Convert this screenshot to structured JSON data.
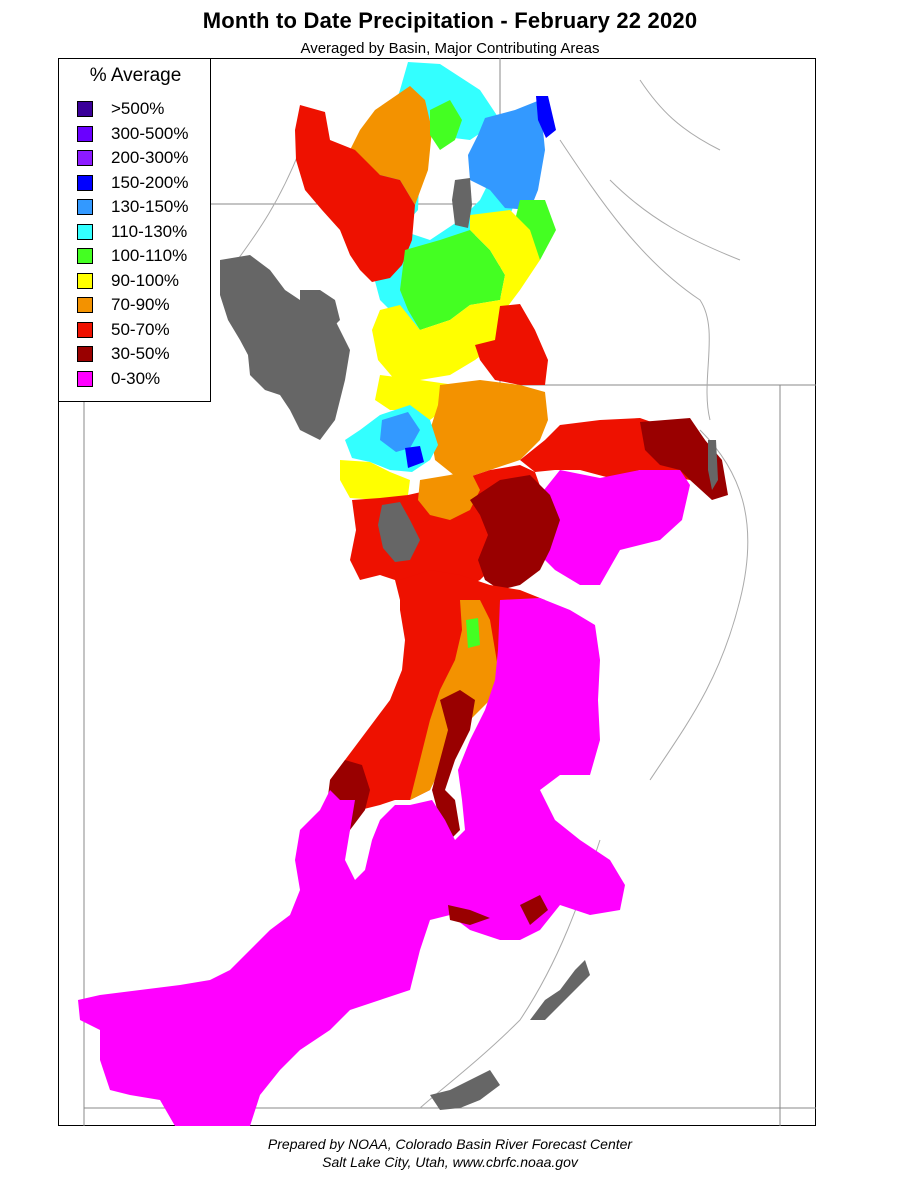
{
  "title": "Month to Date Precipitation - February 22 2020",
  "subtitle": "Averaged by Basin, Major Contributing Areas",
  "legend": {
    "title": "% Average",
    "items": [
      {
        "label": ">500%",
        "color": "#3a0099"
      },
      {
        "label": "300-500%",
        "color": "#6a00ff"
      },
      {
        "label": "200-300%",
        "color": "#8c1aff"
      },
      {
        "label": "150-200%",
        "color": "#0000ff"
      },
      {
        "label": "130-150%",
        "color": "#3399ff"
      },
      {
        "label": "110-130%",
        "color": "#33ffff"
      },
      {
        "label": "100-110%",
        "color": "#44ff22"
      },
      {
        "label": "90-100%",
        "color": "#ffff00"
      },
      {
        "label": "70-90%",
        "color": "#f39200"
      },
      {
        "label": "50-70%",
        "color": "#ee1100"
      },
      {
        "label": "30-50%",
        "color": "#990000"
      },
      {
        "label": "0-30%",
        "color": "#ff00ff"
      }
    ]
  },
  "lake_color": "#666666",
  "footer": {
    "line1": "Prepared by NOAA, Colorado Basin River Forecast Center",
    "line2": "Salt Lake City, Utah, www.cbrfc.noaa.gov"
  }
}
